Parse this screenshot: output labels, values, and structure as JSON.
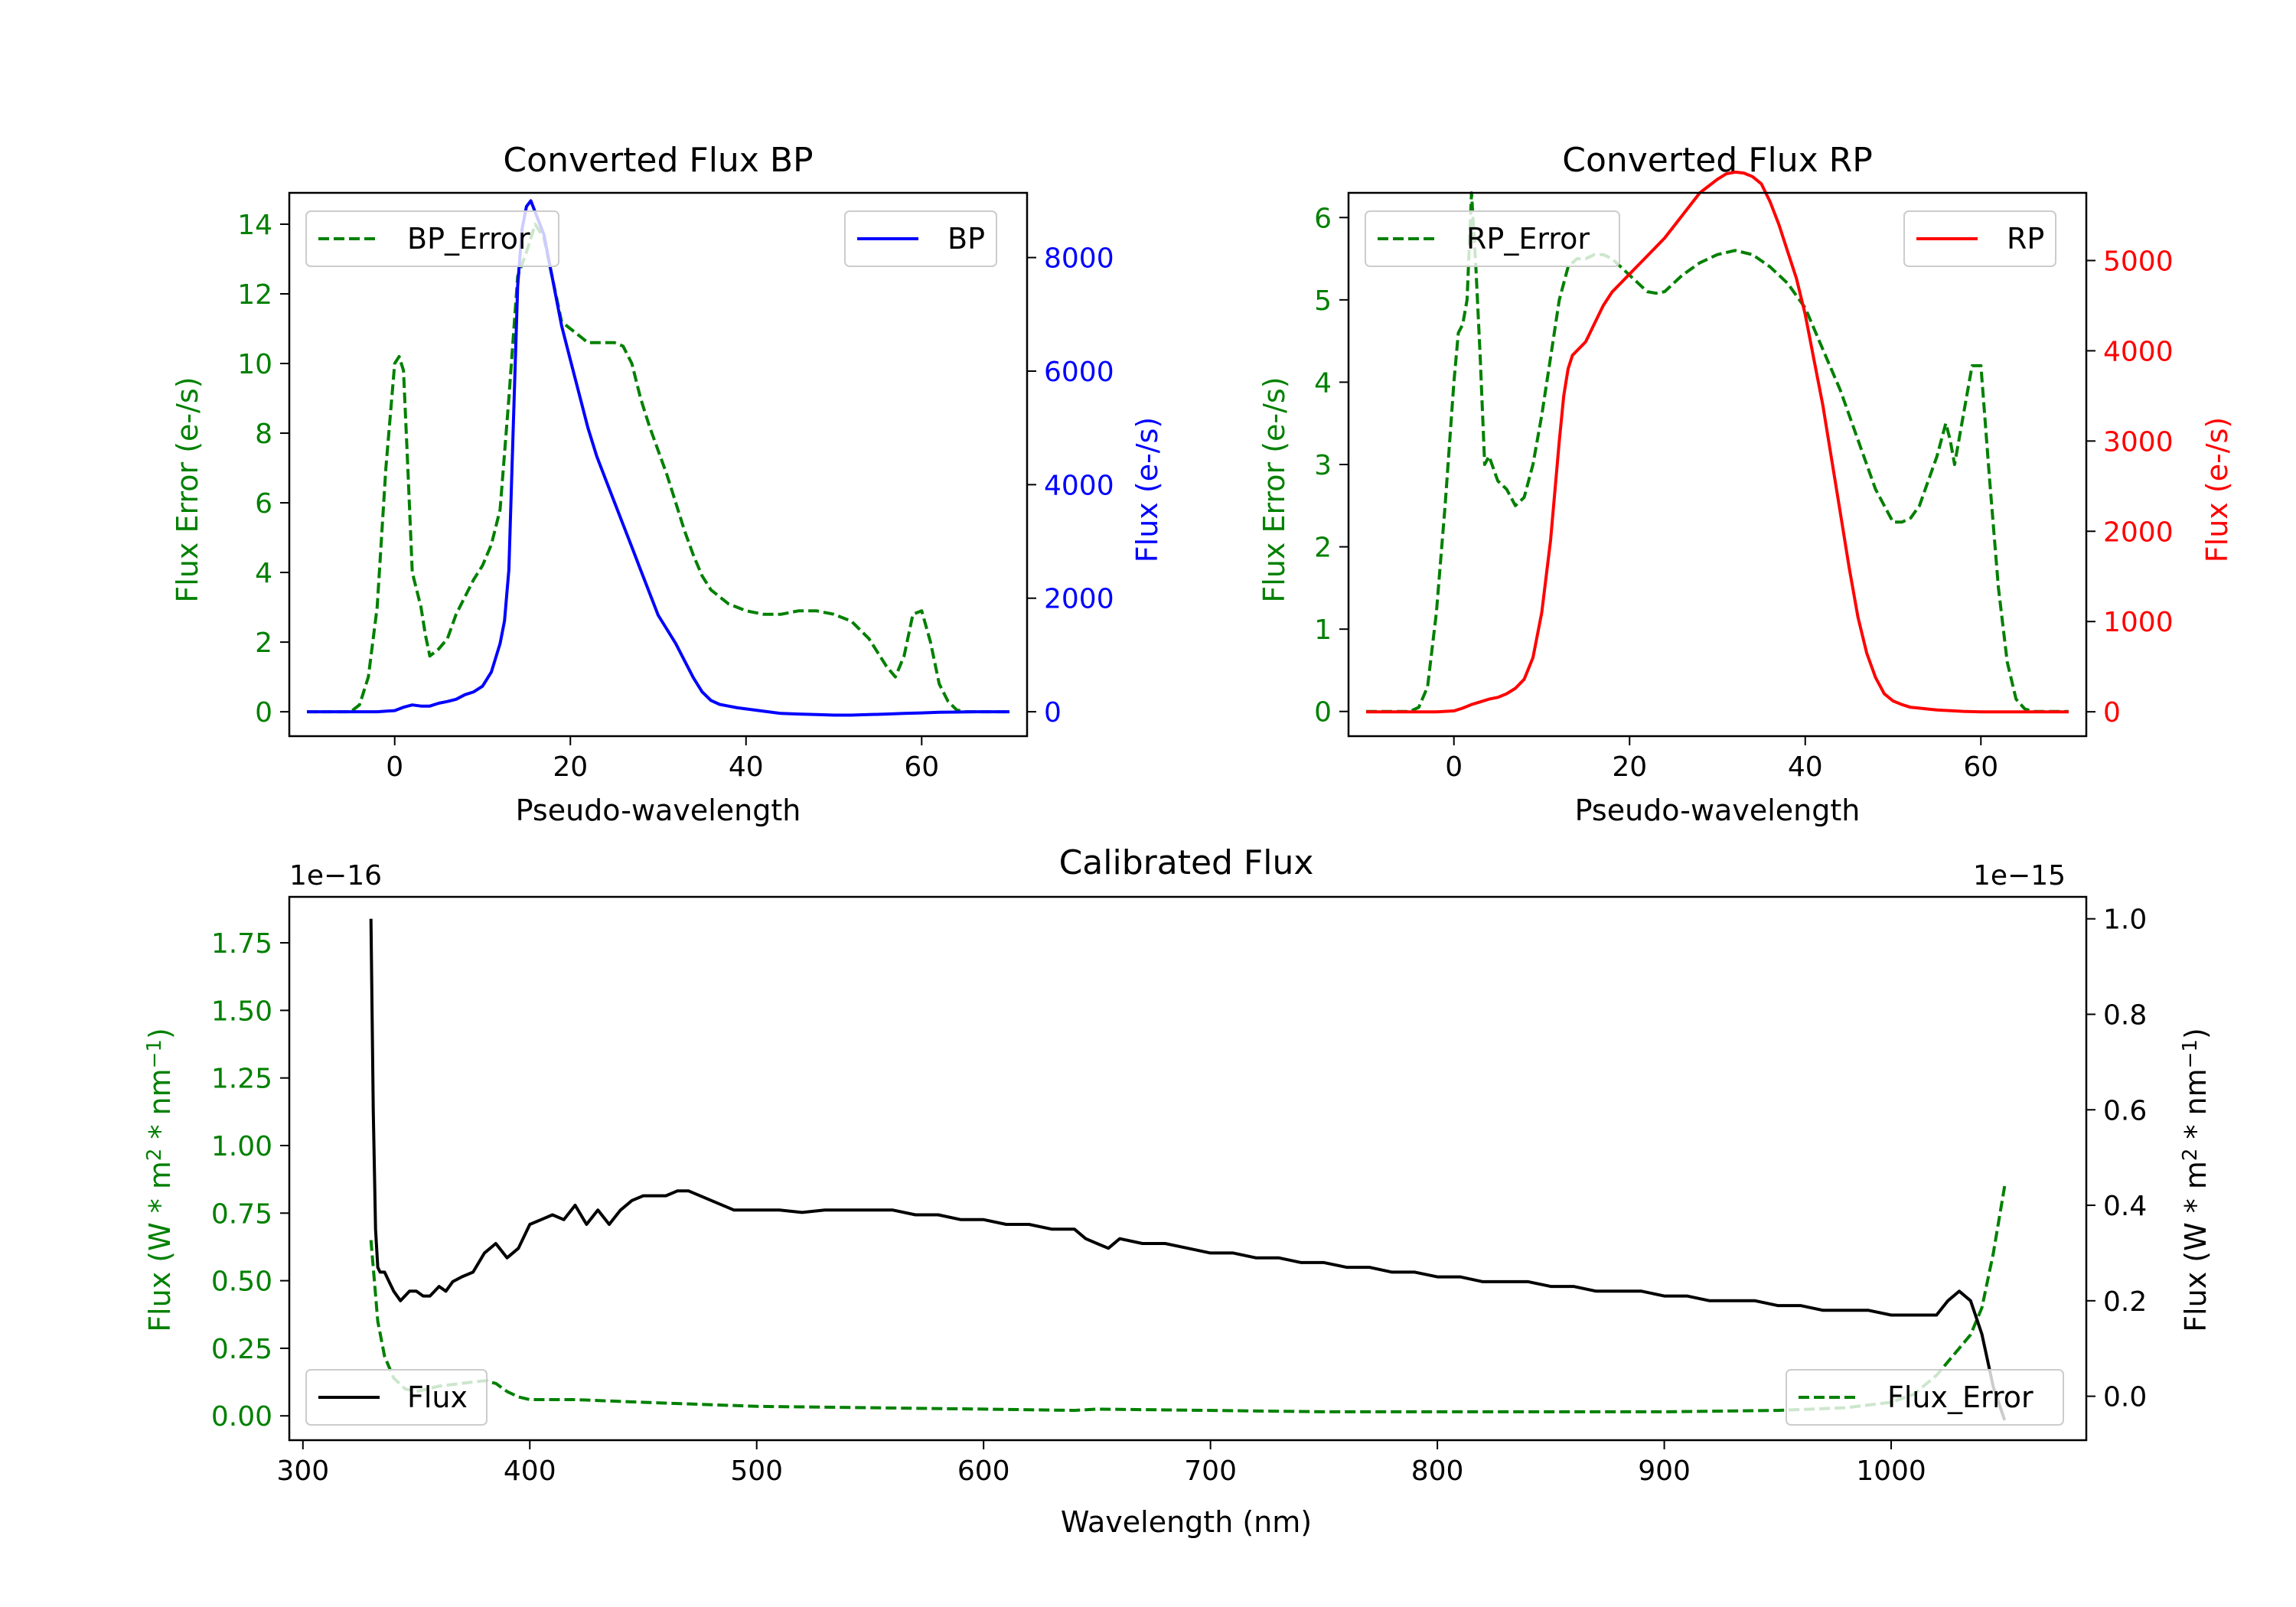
{
  "colors": {
    "green": "#008000",
    "blue": "#0000ff",
    "red": "#ff0000",
    "black": "#000000",
    "axis": "#000000",
    "legend_border": "#cccccc"
  },
  "chart_data": [
    {
      "id": "bp",
      "type": "line",
      "title": "Converted Flux BP",
      "xlabel": "Pseudo-wavelength",
      "ylabel_left": "Flux Error (e-/s)",
      "ylabel_right": "Flux (e-/s)",
      "xlim": [
        -12,
        72
      ],
      "ylim_left": [
        -0.7,
        14.9
      ],
      "ylim_right": [
        -430,
        9140
      ],
      "xticks": [
        0,
        20,
        40,
        60
      ],
      "xtick_labels": [
        "0",
        "20",
        "40",
        "60"
      ],
      "yticks_left": [
        0,
        2,
        4,
        6,
        8,
        10,
        12,
        14
      ],
      "ytick_labels_left": [
        "0",
        "2",
        "4",
        "6",
        "8",
        "10",
        "12",
        "14"
      ],
      "yticks_right": [
        0,
        2000,
        4000,
        6000,
        8000
      ],
      "ytick_labels_right": [
        "0",
        "2000",
        "4000",
        "6000",
        "8000"
      ],
      "right_color": "#0000ff",
      "legend_left": "BP_Error",
      "legend_right": "BP",
      "series": [
        {
          "name": "BP_Error",
          "axis": "left",
          "color": "#008000",
          "style": "dashed",
          "x": [
            -10,
            -5,
            -4,
            -3,
            -2,
            -1,
            0,
            0.5,
            1,
            1.5,
            2,
            2.5,
            3,
            3.5,
            4,
            5,
            6,
            7,
            8,
            9,
            10,
            11,
            12,
            13,
            14,
            15,
            16,
            17,
            18,
            19,
            20,
            21,
            22,
            23,
            24,
            25,
            26,
            27,
            28,
            29,
            30,
            31,
            32,
            33,
            34,
            35,
            36,
            37,
            38,
            39,
            40,
            42,
            44,
            46,
            48,
            50,
            52,
            54,
            56,
            57,
            58,
            59,
            60,
            61,
            62,
            63,
            64,
            65,
            66,
            67,
            68,
            69,
            70
          ],
          "y": [
            0,
            0,
            0.2,
            1,
            3,
            7,
            10,
            10.2,
            9.8,
            7,
            4,
            3.5,
            3,
            2.2,
            1.6,
            1.8,
            2.1,
            2.8,
            3.3,
            3.8,
            4.2,
            4.8,
            5.8,
            9,
            12.5,
            13.2,
            14,
            13.6,
            12.4,
            11.2,
            11,
            10.8,
            10.6,
            10.6,
            10.6,
            10.6,
            10.5,
            10,
            9,
            8.2,
            7.5,
            6.8,
            6,
            5.2,
            4.5,
            3.9,
            3.5,
            3.3,
            3.1,
            3.0,
            2.9,
            2.8,
            2.8,
            2.9,
            2.9,
            2.8,
            2.6,
            2.1,
            1.3,
            1.0,
            1.6,
            2.8,
            2.9,
            2.0,
            0.8,
            0.3,
            0.05,
            0,
            0,
            0,
            0,
            0,
            0
          ]
        },
        {
          "name": "BP",
          "axis": "right",
          "color": "#0000ff",
          "style": "solid",
          "x": [
            -10,
            -5,
            -2,
            0,
            1,
            2,
            3,
            4,
            5,
            6,
            7,
            8,
            9,
            10,
            11,
            12,
            12.5,
            13,
            13.5,
            14,
            14.5,
            15,
            15.5,
            16,
            16.5,
            17,
            17.5,
            18,
            18.5,
            19,
            20,
            21,
            22,
            23,
            24,
            25,
            26,
            27,
            28,
            29,
            30,
            31,
            32,
            33,
            34,
            35,
            36,
            37,
            38,
            39,
            40,
            42,
            44,
            46,
            48,
            50,
            52,
            54,
            56,
            58,
            60,
            62,
            64,
            66,
            68,
            70
          ],
          "y": [
            0,
            0,
            0,
            20,
            80,
            120,
            100,
            100,
            150,
            180,
            220,
            300,
            350,
            450,
            700,
            1200,
            1600,
            2500,
            5000,
            7500,
            8500,
            8900,
            9000,
            8800,
            8600,
            8400,
            8000,
            7600,
            7200,
            6800,
            6200,
            5600,
            5000,
            4500,
            4100,
            3700,
            3300,
            2900,
            2500,
            2100,
            1700,
            1450,
            1200,
            900,
            600,
            350,
            200,
            130,
            100,
            70,
            50,
            10,
            -30,
            -40,
            -50,
            -60,
            -60,
            -50,
            -40,
            -30,
            -20,
            -10,
            -5,
            0,
            0,
            0
          ]
        }
      ]
    },
    {
      "id": "rp",
      "type": "line",
      "title": "Converted Flux RP",
      "xlabel": "Pseudo-wavelength",
      "ylabel_left": "Flux Error (e-/s)",
      "ylabel_right": "Flux (e-/s)",
      "xlim": [
        -12,
        72
      ],
      "ylim_left": [
        -0.3,
        6.3
      ],
      "ylim_right": [
        -270,
        5750
      ],
      "xticks": [
        0,
        20,
        40,
        60
      ],
      "xtick_labels": [
        "0",
        "20",
        "40",
        "60"
      ],
      "yticks_left": [
        0,
        1,
        2,
        3,
        4,
        5,
        6
      ],
      "ytick_labels_left": [
        "0",
        "1",
        "2",
        "3",
        "4",
        "5",
        "6"
      ],
      "yticks_right": [
        0,
        1000,
        2000,
        3000,
        4000,
        5000
      ],
      "ytick_labels_right": [
        "0",
        "1000",
        "2000",
        "3000",
        "4000",
        "5000"
      ],
      "right_color": "#ff0000",
      "legend_left": "RP_Error",
      "legend_right": "RP",
      "series": [
        {
          "name": "RP_Error",
          "axis": "left",
          "color": "#008000",
          "style": "dashed",
          "x": [
            -10,
            -5,
            -4,
            -3,
            -2,
            -1,
            0,
            0.5,
            1,
            1.5,
            2,
            2.5,
            3,
            3.5,
            4,
            5,
            6,
            7,
            8,
            9,
            10,
            11,
            12,
            13,
            14,
            15,
            16,
            17,
            18,
            19,
            20,
            21,
            22,
            23,
            24,
            25,
            26,
            28,
            30,
            32,
            34,
            36,
            38,
            40,
            42,
            44,
            46,
            48,
            50,
            51,
            52,
            53,
            54,
            55,
            56,
            56.5,
            57,
            58,
            59,
            60,
            61,
            62,
            63,
            64,
            65,
            66,
            68,
            70
          ],
          "y": [
            0,
            0,
            0.05,
            0.3,
            1.2,
            2.5,
            4,
            4.6,
            4.7,
            5,
            6.3,
            5.4,
            4.3,
            3.0,
            3.1,
            2.8,
            2.7,
            2.5,
            2.6,
            3.0,
            3.6,
            4.3,
            5,
            5.4,
            5.5,
            5.5,
            5.55,
            5.55,
            5.5,
            5.4,
            5.3,
            5.2,
            5.1,
            5.08,
            5.1,
            5.2,
            5.3,
            5.45,
            5.55,
            5.6,
            5.55,
            5.4,
            5.2,
            4.9,
            4.4,
            3.9,
            3.3,
            2.7,
            2.3,
            2.3,
            2.35,
            2.5,
            2.8,
            3.1,
            3.5,
            3.3,
            3.0,
            3.6,
            4.2,
            4.2,
            2.8,
            1.5,
            0.6,
            0.15,
            0.03,
            0,
            0,
            0
          ]
        },
        {
          "name": "RP",
          "axis": "right",
          "color": "#ff0000",
          "style": "solid",
          "x": [
            -10,
            -5,
            -2,
            0,
            1,
            2,
            3,
            4,
            5,
            6,
            7,
            8,
            9,
            10,
            11,
            12,
            12.5,
            13,
            13.5,
            14,
            15,
            16,
            17,
            18,
            19,
            20,
            22,
            24,
            26,
            28,
            30,
            31,
            32,
            33,
            34,
            35,
            36,
            37,
            38,
            39,
            40,
            41,
            42,
            43,
            44,
            45,
            46,
            47,
            48,
            49,
            50,
            51,
            52,
            53,
            54,
            55,
            56,
            57,
            58,
            60,
            62,
            64,
            66,
            68,
            70
          ],
          "y": [
            0,
            0,
            0,
            10,
            40,
            80,
            110,
            140,
            160,
            200,
            260,
            360,
            600,
            1100,
            1900,
            3000,
            3500,
            3800,
            3950,
            4000,
            4100,
            4300,
            4500,
            4650,
            4750,
            4850,
            5050,
            5250,
            5500,
            5750,
            5900,
            5960,
            5980,
            5970,
            5930,
            5850,
            5650,
            5400,
            5100,
            4800,
            4400,
            3900,
            3400,
            2800,
            2200,
            1600,
            1050,
            650,
            380,
            200,
            120,
            80,
            50,
            40,
            30,
            20,
            15,
            10,
            5,
            0,
            0,
            0,
            0,
            0,
            0
          ]
        }
      ]
    },
    {
      "id": "calibrated",
      "type": "line",
      "title": "Calibrated Flux",
      "xlabel": "Wavelength (nm)",
      "ylabel_left_parts": [
        "Flux (W * m",
        "2",
        " * nm",
        "−1",
        ")"
      ],
      "ylabel_right_parts": [
        "Flux (W * m",
        "2",
        " * nm",
        "−1",
        ")"
      ],
      "offset_left": "1e−16",
      "offset_right": "1e−15",
      "xlim": [
        294,
        1086
      ],
      "ylim_left": [
        -0.09,
        1.92
      ],
      "ylim_right": [
        -0.092,
        1.046
      ],
      "xticks": [
        300,
        400,
        500,
        600,
        700,
        800,
        900,
        1000
      ],
      "xtick_labels": [
        "300",
        "400",
        "500",
        "600",
        "700",
        "800",
        "900",
        "1000"
      ],
      "yticks_left": [
        0,
        0.25,
        0.5,
        0.75,
        1.0,
        1.25,
        1.5,
        1.75
      ],
      "ytick_labels_left": [
        "0.00",
        "0.25",
        "0.50",
        "0.75",
        "1.00",
        "1.25",
        "1.50",
        "1.75"
      ],
      "yticks_right": [
        0,
        0.2,
        0.4,
        0.6,
        0.8,
        1.0
      ],
      "ytick_labels_right": [
        "0.0",
        "0.2",
        "0.4",
        "0.6",
        "0.8",
        "1.0"
      ],
      "right_color": "#000000",
      "legend_left": "Flux",
      "legend_right": "Flux_Error",
      "series": [
        {
          "name": "Flux_Error",
          "axis": "left",
          "color": "#008000",
          "style": "dashed",
          "x": [
            330,
            333,
            336,
            340,
            345,
            350,
            360,
            370,
            380,
            385,
            390,
            395,
            400,
            420,
            450,
            500,
            550,
            600,
            640,
            650,
            700,
            750,
            800,
            850,
            900,
            950,
            980,
            1000,
            1010,
            1020,
            1030,
            1035,
            1040,
            1045,
            1050
          ],
          "y": [
            0.65,
            0.35,
            0.22,
            0.14,
            0.1,
            0.09,
            0.11,
            0.12,
            0.13,
            0.12,
            0.09,
            0.07,
            0.06,
            0.06,
            0.05,
            0.035,
            0.03,
            0.025,
            0.02,
            0.025,
            0.02,
            0.015,
            0.015,
            0.015,
            0.015,
            0.02,
            0.03,
            0.05,
            0.08,
            0.15,
            0.25,
            0.3,
            0.4,
            0.6,
            0.85
          ]
        },
        {
          "name": "Flux",
          "axis": "right",
          "color": "#000000",
          "style": "solid",
          "x": [
            330,
            331,
            332,
            333,
            334,
            336,
            338,
            340,
            343,
            347,
            350,
            353,
            356,
            360,
            363,
            366,
            370,
            375,
            380,
            385,
            390,
            395,
            400,
            405,
            410,
            415,
            420,
            425,
            430,
            435,
            440,
            445,
            450,
            455,
            460,
            465,
            470,
            480,
            490,
            500,
            510,
            520,
            530,
            540,
            550,
            560,
            570,
            580,
            590,
            600,
            610,
            620,
            630,
            640,
            645,
            650,
            655,
            660,
            670,
            680,
            690,
            700,
            710,
            720,
            730,
            740,
            750,
            760,
            770,
            780,
            790,
            800,
            810,
            820,
            830,
            840,
            850,
            860,
            870,
            880,
            890,
            900,
            910,
            920,
            930,
            940,
            950,
            960,
            970,
            980,
            990,
            1000,
            1010,
            1020,
            1025,
            1030,
            1035,
            1040,
            1045,
            1050
          ],
          "y": [
            1.0,
            0.6,
            0.35,
            0.27,
            0.26,
            0.26,
            0.24,
            0.22,
            0.2,
            0.22,
            0.22,
            0.21,
            0.21,
            0.23,
            0.22,
            0.24,
            0.25,
            0.26,
            0.3,
            0.32,
            0.29,
            0.31,
            0.36,
            0.37,
            0.38,
            0.37,
            0.4,
            0.36,
            0.39,
            0.36,
            0.39,
            0.41,
            0.42,
            0.42,
            0.42,
            0.43,
            0.43,
            0.41,
            0.39,
            0.39,
            0.39,
            0.385,
            0.39,
            0.39,
            0.39,
            0.39,
            0.38,
            0.38,
            0.37,
            0.37,
            0.36,
            0.36,
            0.35,
            0.35,
            0.33,
            0.32,
            0.31,
            0.33,
            0.32,
            0.32,
            0.31,
            0.3,
            0.3,
            0.29,
            0.29,
            0.28,
            0.28,
            0.27,
            0.27,
            0.26,
            0.26,
            0.25,
            0.25,
            0.24,
            0.24,
            0.24,
            0.23,
            0.23,
            0.22,
            0.22,
            0.22,
            0.21,
            0.21,
            0.2,
            0.2,
            0.2,
            0.19,
            0.19,
            0.18,
            0.18,
            0.18,
            0.17,
            0.17,
            0.17,
            0.2,
            0.22,
            0.2,
            0.13,
            0.02,
            -0.05
          ]
        }
      ]
    }
  ]
}
